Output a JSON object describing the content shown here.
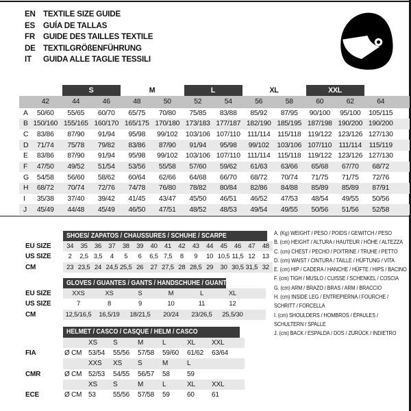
{
  "header": {
    "languages": [
      {
        "code": "EN",
        "title": "TEXTILE SIZE GUIDE"
      },
      {
        "code": "ES",
        "title": "GUÍA DE TALLAS"
      },
      {
        "code": "FR",
        "title": "GUIDE DES TAILLES TEXTILE"
      },
      {
        "code": "DE",
        "title": "TEXTILGRÖßENFÜHRUNG"
      },
      {
        "code": "IT",
        "title": "GUIDA ALLE TAGLIE TESSILI"
      }
    ]
  },
  "icons": {
    "helmet": "racing-helmet-icon"
  },
  "colors": {
    "dark_band": "#3b3b3b",
    "column_header_gray": "#c2c2c2",
    "row_stripe_gray": "#e9e9e9",
    "table_stripe_gray": "#e7e7e7",
    "text": "#111111",
    "background": "#ffffff"
  },
  "main_table": {
    "size_bands": [
      {
        "label": "S",
        "dark": true
      },
      {
        "label": "M",
        "dark": false
      },
      {
        "label": "L",
        "dark": true
      },
      {
        "label": "XL",
        "dark": false
      },
      {
        "label": "XXL",
        "dark": true
      }
    ],
    "columns": [
      "42",
      "44",
      "46",
      "48",
      "50",
      "52",
      "54",
      "56",
      "58",
      "60",
      "62",
      "64"
    ],
    "rows": [
      {
        "label": "A",
        "values": [
          "50/60",
          "55/65",
          "60/70",
          "65/75",
          "70/80",
          "75/85",
          "83/88",
          "85/92",
          "87/95",
          "90/100",
          "95/100",
          "105/115"
        ]
      },
      {
        "label": "B",
        "values": [
          "150/160",
          "155/165",
          "160/170",
          "165/175",
          "170/180",
          "173/183",
          "177/187",
          "182/190",
          "185/195",
          "187/198",
          "190/200",
          "190/200"
        ]
      },
      {
        "label": "C",
        "values": [
          "83/86",
          "87/90",
          "91/94",
          "95/98",
          "99/102",
          "103/106",
          "107/110",
          "111/114",
          "115/118",
          "119/122",
          "123/126",
          "127/130"
        ]
      },
      {
        "label": "D",
        "values": [
          "71/74",
          "75/78",
          "79/82",
          "83/86",
          "87/90",
          "91/94",
          "95/98",
          "99/102",
          "103/106",
          "107/110",
          "111/114",
          "115/119"
        ]
      },
      {
        "label": "E",
        "values": [
          "83/86",
          "87/90",
          "91/94",
          "95/98",
          "99/102",
          "103/106",
          "107/110",
          "111/114",
          "115/118",
          "119/122",
          "123/126",
          "127/130"
        ]
      },
      {
        "label": "F",
        "values": [
          "47/50",
          "49/52",
          "51/54",
          "53/56",
          "55/58",
          "57/60",
          "59/62",
          "61/63",
          "63/66",
          "65/68",
          "67/70",
          "68/72"
        ]
      },
      {
        "label": "G",
        "values": [
          "54/58",
          "56/60",
          "58/62",
          "60/64",
          "62/66",
          "64/68",
          "66/70",
          "68/72",
          "70/74",
          "71/75",
          "71/75",
          "72/76"
        ]
      },
      {
        "label": "H",
        "values": [
          "68/72",
          "70/74",
          "72/76",
          "74/78",
          "76/80",
          "78/82",
          "80/84",
          "82/86",
          "84/88",
          "85/89",
          "85/89",
          "87/91"
        ]
      },
      {
        "label": "I",
        "values": [
          "35/38",
          "37/40",
          "39/42",
          "41/45",
          "43/47",
          "45/50",
          "46/51",
          "46/52",
          "47/53",
          "48/54",
          "49/55",
          "50/56"
        ]
      },
      {
        "label": "J",
        "values": [
          "45/49",
          "44/48",
          "45/49",
          "46/50",
          "47/51",
          "48/52",
          "48/53",
          "49/54",
          "49/55",
          "50/56",
          "51/56",
          "52/58"
        ]
      }
    ]
  },
  "shoes": {
    "title": "SHOES/ ZAPATOS / CHAUSSURES / SCHUHE / SCARPE",
    "rows": [
      {
        "label": "EU SIZE",
        "values": [
          "34",
          "35",
          "36",
          "37",
          "38",
          "39",
          "40",
          "41",
          "42",
          "43",
          "44",
          "45",
          "46",
          "47",
          "48"
        ]
      },
      {
        "label": "US SIZE",
        "values": [
          "2",
          "2,5",
          "3,5",
          "4",
          "5",
          "6",
          "6,5",
          "7,5",
          "8",
          "9",
          "10",
          "10,5",
          "11,5",
          "12",
          "13"
        ]
      },
      {
        "label": "CM",
        "values": [
          "23",
          "23,5",
          "24",
          "24,5",
          "25,5",
          "26",
          "27",
          "27,5",
          "28",
          "28,5",
          "29",
          "30",
          "30,5",
          "31,5",
          "32"
        ]
      }
    ]
  },
  "gloves": {
    "title": "GLOVES / GUANTES / GANTS / HANDSCHUHE / GUANTI",
    "rows": [
      {
        "label": "EU SIZE",
        "values": [
          "XXS",
          "XS",
          "S",
          "M",
          "L",
          "XL"
        ]
      },
      {
        "label": "US SIZE",
        "values": [
          "7",
          "8",
          "9",
          "10",
          "11",
          "12"
        ]
      },
      {
        "label": "CM",
        "values": [
          "12,5/16,5",
          "16,5/19",
          "18/21,5",
          "20/24",
          "23/26,5",
          "25,5/30"
        ]
      }
    ]
  },
  "helmet": {
    "title": "HELMET / CASCO / CASQUE / HELM / CASCO",
    "groups": [
      {
        "label": "FIA",
        "unit": "Ø CM",
        "sizes": [
          "XS",
          "S",
          "M",
          "L",
          "XL",
          "XXL"
        ],
        "values": [
          "53/54",
          "55/56",
          "57/58",
          "59/60",
          "61/62",
          "63/64"
        ]
      },
      {
        "label": "CMR",
        "unit": "Ø CM",
        "sizes": [
          "XXS",
          "XS",
          "S",
          "M",
          "L"
        ],
        "values": [
          "52/53",
          "54/55",
          "56/57",
          "58",
          "59"
        ]
      },
      {
        "label": "ECE",
        "unit": "Ø CM",
        "sizes": [
          "XS",
          "S",
          "M",
          "L",
          "XL",
          "XXL"
        ],
        "values": [
          "53",
          "55/56",
          "57/58",
          "59",
          "60",
          "61"
        ]
      }
    ]
  },
  "legend": {
    "items": [
      [
        "A. (Kg) WEIGHT / PESO / POIDS / GEWITCH / PESO"
      ],
      [
        "B. (cm) HEIGHT / ALTURA / HAUTEUR / HÖHE / ALTEZZA"
      ],
      [
        "C. (cm) CHEST / PECHO / POITRINE / TRUHE / PETTO"
      ],
      [
        "D. (cm) WAIST / CINTURA / TAILLE / HÜFTUNG / VITA"
      ],
      [
        "E. (cm) HIP / CADERA / HANCHE / HÜFTE / HIPS / BACINO"
      ],
      [
        "F. (cm) TIGH / MUSLO / CUISSE / SCHENKEL / COSCIA"
      ],
      [
        "G. (cm) ARM / BRAZO / BRAS / ARM / BRACCIO"
      ],
      [
        "H. (cm) INSIDE LEG / ENTREPIERNA / FOURCHE /",
        "SCHRITT / FORCELLA"
      ],
      [
        "I. (cm) SHOULDERS / HOMBROS / ÉPAULES /",
        "SCHULTERN / SPALLE"
      ],
      [
        "J. (cm) BACK / ESPALDA / DOS / ZURÜCK / INDIETRO"
      ]
    ]
  }
}
